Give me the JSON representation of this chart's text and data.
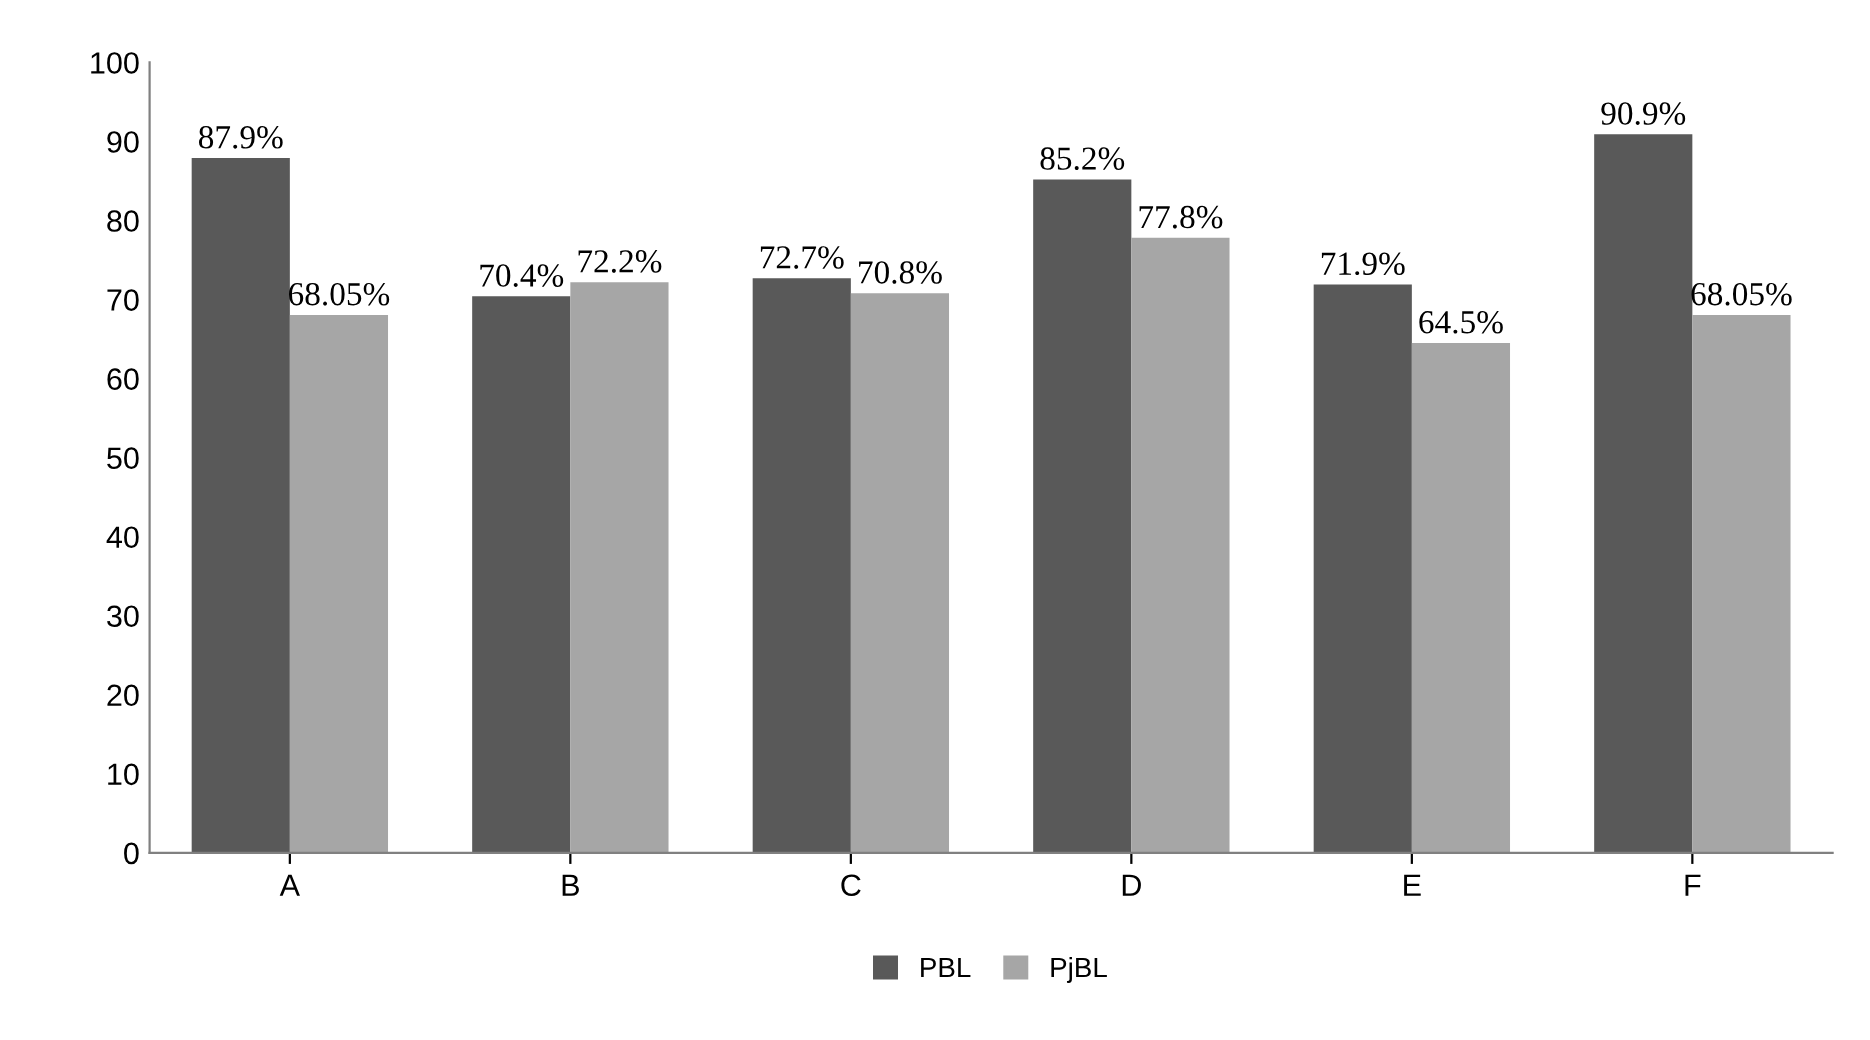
{
  "chart_data": {
    "type": "bar",
    "categories": [
      "A",
      "B",
      "C",
      "D",
      "E",
      "F"
    ],
    "series": [
      {
        "name": "PBL",
        "color": "#595959",
        "values": [
          87.9,
          70.4,
          72.7,
          85.2,
          71.9,
          90.9
        ],
        "value_labels": [
          "87.9%",
          "70.4%",
          "72.7%",
          "85.2%",
          "71.9%",
          "90.9%"
        ]
      },
      {
        "name": "PjBL",
        "color": "#a6a6a6",
        "values": [
          68.05,
          72.2,
          70.8,
          77.8,
          64.5,
          68.05
        ],
        "value_labels": [
          "68.05%",
          "72.2%",
          "70.8%",
          "77.8%",
          "64.5%",
          "68.05%"
        ]
      }
    ],
    "ylim": [
      0,
      100
    ],
    "yticks": [
      0,
      10,
      20,
      30,
      40,
      50,
      60,
      70,
      80,
      90,
      100
    ],
    "grid": false,
    "legend": "bottom"
  }
}
